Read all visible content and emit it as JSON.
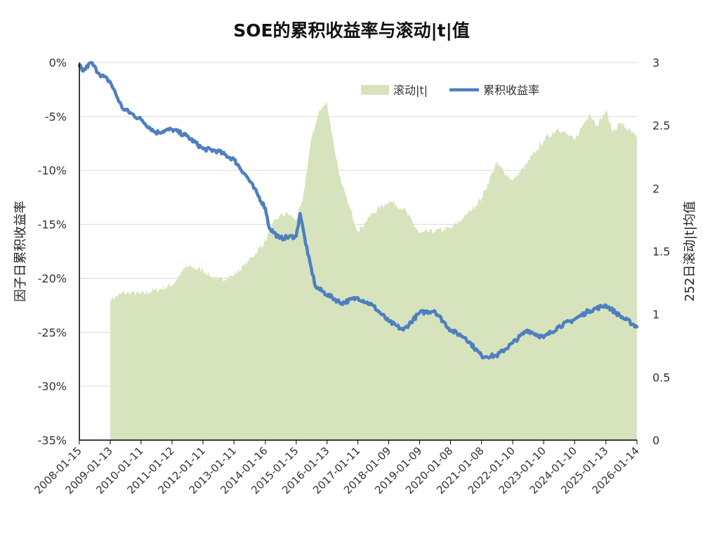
{
  "chart_data": {
    "type": "area+line",
    "title": "SOE的累积收益率与滚动|t|值",
    "ylabel_left": "因子日累积收益率",
    "ylabel_right": "252日滚动|t|均值",
    "legend": {
      "placement": "top-right inside plot",
      "entries": [
        "滚动|t|",
        "累积收益率"
      ]
    },
    "left_axis": {
      "ylim": [
        -0.35,
        0
      ],
      "ticks": [
        0,
        -0.05,
        -0.1,
        -0.15,
        -0.2,
        -0.25,
        -0.3,
        -0.35
      ],
      "tick_labels": [
        "0%",
        "-5%",
        "-10%",
        "-15%",
        "-20%",
        "-25%",
        "-30%",
        "-35%"
      ]
    },
    "right_axis": {
      "ylim": [
        0,
        3
      ],
      "ticks": [
        0,
        0.5,
        1,
        1.5,
        2,
        2.5,
        3
      ],
      "tick_labels": [
        "0",
        "0.5",
        "1",
        "1.5",
        "2",
        "2.5",
        "3"
      ]
    },
    "grid": "horizontal",
    "x_tick_labels": [
      "2008-01-15",
      "2009-01-13",
      "2010-01-11",
      "2011-01-12",
      "2012-01-11",
      "2013-01-11",
      "2014-01-16",
      "2015-01-15",
      "2016-01-13",
      "2017-01-11",
      "2018-01-09",
      "2019-01-09",
      "2020-01-08",
      "2021-01-08",
      "2022-01-10",
      "2023-01-10",
      "2024-01-10",
      "2025-01-13",
      "2026-01-14"
    ],
    "colors": {
      "area": "#d6e3bd",
      "line": "#4f7fbf"
    },
    "series": [
      {
        "name": "滚动|t|",
        "axis": "right",
        "type": "area",
        "points": [
          [
            "2009-01-13",
            1.12
          ],
          [
            "2009-07-01",
            1.17
          ],
          [
            "2010-01-11",
            1.16
          ],
          [
            "2010-07-01",
            1.19
          ],
          [
            "2011-01-12",
            1.23
          ],
          [
            "2011-07-01",
            1.38
          ],
          [
            "2012-01-11",
            1.35
          ],
          [
            "2012-07-01",
            1.27
          ],
          [
            "2013-01-11",
            1.31
          ],
          [
            "2013-07-01",
            1.42
          ],
          [
            "2014-01-16",
            1.58
          ],
          [
            "2014-04-01",
            1.7
          ],
          [
            "2014-07-01",
            1.78
          ],
          [
            "2014-10-01",
            1.8
          ],
          [
            "2015-01-15",
            1.75
          ],
          [
            "2015-04-01",
            1.9
          ],
          [
            "2015-07-01",
            2.35
          ],
          [
            "2015-10-01",
            2.6
          ],
          [
            "2016-01-13",
            2.68
          ],
          [
            "2016-04-01",
            2.35
          ],
          [
            "2016-07-01",
            2.03
          ],
          [
            "2017-01-11",
            1.66
          ],
          [
            "2017-07-01",
            1.8
          ],
          [
            "2018-01-09",
            1.9
          ],
          [
            "2018-07-01",
            1.84
          ],
          [
            "2019-01-09",
            1.64
          ],
          [
            "2019-07-01",
            1.66
          ],
          [
            "2020-01-08",
            1.68
          ],
          [
            "2020-07-01",
            1.78
          ],
          [
            "2021-01-08",
            1.92
          ],
          [
            "2021-07-01",
            2.2
          ],
          [
            "2022-01-10",
            2.06
          ],
          [
            "2022-07-01",
            2.2
          ],
          [
            "2023-01-10",
            2.38
          ],
          [
            "2023-07-01",
            2.48
          ],
          [
            "2024-01-10",
            2.38
          ],
          [
            "2024-07-01",
            2.6
          ],
          [
            "2024-10-01",
            2.5
          ],
          [
            "2025-01-13",
            2.62
          ],
          [
            "2025-04-01",
            2.45
          ],
          [
            "2025-07-01",
            2.52
          ],
          [
            "2026-01-14",
            2.4
          ]
        ]
      },
      {
        "name": "累积收益率",
        "axis": "left",
        "type": "line",
        "points": [
          [
            "2008-01-15",
            -0.003
          ],
          [
            "2008-03-01",
            -0.008
          ],
          [
            "2008-06-01",
            0.0
          ],
          [
            "2008-09-01",
            -0.01
          ],
          [
            "2009-01-13",
            -0.018
          ],
          [
            "2009-06-01",
            -0.042
          ],
          [
            "2010-01-11",
            -0.053
          ],
          [
            "2010-07-01",
            -0.065
          ],
          [
            "2011-01-12",
            -0.062
          ],
          [
            "2011-07-01",
            -0.068
          ],
          [
            "2012-01-11",
            -0.08
          ],
          [
            "2012-07-01",
            -0.082
          ],
          [
            "2013-01-11",
            -0.09
          ],
          [
            "2013-07-01",
            -0.108
          ],
          [
            "2014-01-16",
            -0.135
          ],
          [
            "2014-03-01",
            -0.153
          ],
          [
            "2014-07-01",
            -0.163
          ],
          [
            "2015-01-15",
            -0.161
          ],
          [
            "2015-03-01",
            -0.14
          ],
          [
            "2015-06-01",
            -0.178
          ],
          [
            "2015-09-01",
            -0.208
          ],
          [
            "2016-01-13",
            -0.215
          ],
          [
            "2016-07-01",
            -0.223
          ],
          [
            "2017-01-11",
            -0.218
          ],
          [
            "2017-07-01",
            -0.225
          ],
          [
            "2018-01-09",
            -0.24
          ],
          [
            "2018-07-01",
            -0.248
          ],
          [
            "2019-01-09",
            -0.232
          ],
          [
            "2019-07-01",
            -0.23
          ],
          [
            "2020-01-08",
            -0.248
          ],
          [
            "2020-07-01",
            -0.255
          ],
          [
            "2021-01-08",
            -0.272
          ],
          [
            "2021-07-01",
            -0.272
          ],
          [
            "2022-01-10",
            -0.26
          ],
          [
            "2022-07-01",
            -0.248
          ],
          [
            "2023-01-10",
            -0.255
          ],
          [
            "2023-07-01",
            -0.245
          ],
          [
            "2024-01-10",
            -0.238
          ],
          [
            "2024-07-01",
            -0.23
          ],
          [
            "2025-01-13",
            -0.225
          ],
          [
            "2025-07-01",
            -0.235
          ],
          [
            "2026-01-14",
            -0.245
          ]
        ]
      }
    ]
  }
}
